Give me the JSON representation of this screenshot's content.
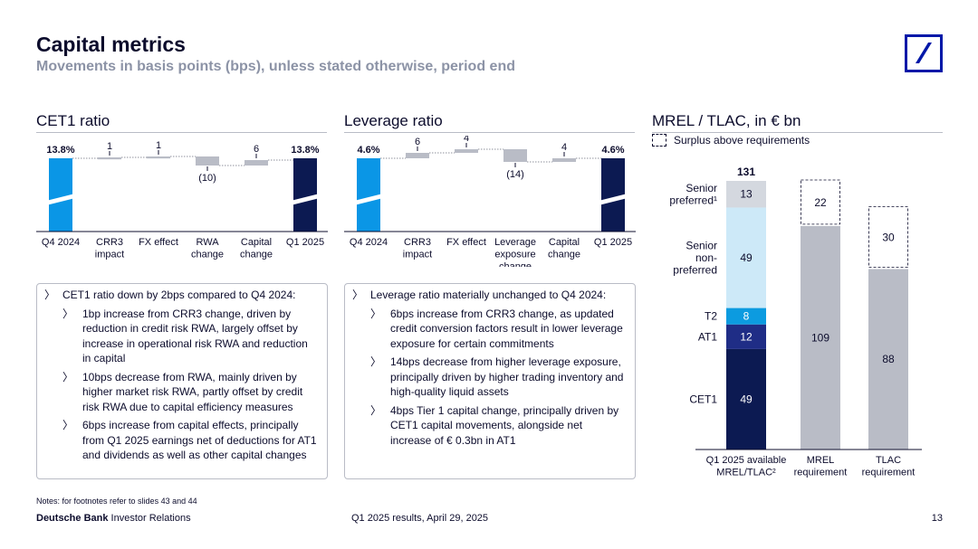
{
  "header": {
    "title": "Capital metrics",
    "subtitle": "Movements in basis points (bps), unless stated otherwise, period end"
  },
  "sections": {
    "cet1_title": "CET1 ratio",
    "leverage_title": "Leverage ratio",
    "mrel_title": "MREL / TLAC, in € bn",
    "legend_label": "Surplus above requirements"
  },
  "colors": {
    "light_blue": "#0a96e6",
    "navy": "#0c1a52",
    "grey": "#b9bcc6",
    "pale_blue": "#cde9f8",
    "mid_blue": "#0c9be0",
    "dark_blue": "#1f2d86",
    "light_grey": "#d4d8df"
  },
  "chart_data": [
    {
      "type": "bar",
      "title": "CET1 ratio",
      "subtype": "waterfall",
      "categories": [
        "Q4 2024",
        "CRR3 impact",
        "FX effect",
        "RWA change",
        "Capital change",
        "Q1 2025"
      ],
      "values": [
        13.8,
        1,
        1,
        -10,
        6,
        13.8
      ],
      "labels": [
        "13.8%",
        "1",
        "1",
        "(10)",
        "6",
        "13.8%"
      ],
      "units": [
        "%",
        "bps",
        "bps",
        "bps",
        "bps",
        "%"
      ]
    },
    {
      "type": "bar",
      "title": "Leverage ratio",
      "subtype": "waterfall",
      "categories": [
        "Q4 2024",
        "CRR3 impact",
        "FX effect",
        "Leverage exposure change",
        "Capital change",
        "Q1 2025"
      ],
      "values": [
        4.6,
        6,
        4,
        -14,
        4,
        4.6
      ],
      "labels": [
        "4.6%",
        "6",
        "4",
        "(14)",
        "4",
        "4.6%"
      ],
      "units": [
        "%",
        "bps",
        "bps",
        "bps",
        "bps",
        "%"
      ]
    },
    {
      "type": "bar",
      "title": "MREL / TLAC, in € bn",
      "subtype": "stacked",
      "categories": [
        "Q1 2025 available MREL/TLAC2",
        "MREL requirement",
        "TLAC requirement"
      ],
      "stack_labels": [
        "CET1",
        "AT1",
        "T2",
        "Senior non-preferred",
        "Senior preferred1"
      ],
      "available": {
        "CET1": 49,
        "AT1": 12,
        "T2": 8,
        "Senior non-preferred": 49,
        "Senior preferred1": 13,
        "total": 131
      },
      "requirements": [
        {
          "name": "MREL requirement",
          "requirement": 109,
          "surplus": 22
        },
        {
          "name": "TLAC requirement",
          "requirement": 88,
          "surplus": 30
        }
      ]
    }
  ],
  "cet1_text": {
    "headline": "CET1 ratio down by 2bps compared to Q4 2024:",
    "bullets": [
      "1bp increase from CRR3 change, driven by reduction in credit risk RWA, largely offset by increase in operational risk RWA and reduction in capital",
      "10bps decrease from RWA, mainly driven by higher market risk RWA, partly offset by credit risk RWA due to capital efficiency measures",
      "6bps increase from capital effects, principally from Q1 2025 earnings net of deductions for AT1 and dividends as well as other capital changes"
    ]
  },
  "leverage_text": {
    "headline": "Leverage ratio materially unchanged to Q4 2024:",
    "bullets": [
      "6bps increase from CRR3 change, as updated credit conversion factors result in lower leverage exposure for certain commitments",
      "14bps decrease from higher leverage exposure, principally driven by higher trading inventory and high-quality liquid assets",
      "4bps Tier 1 capital change, principally driven by CET1 capital movements, alongside net increase of € 0.3bn in AT1"
    ]
  },
  "footer": {
    "notes": "Notes: for footnotes refer to slides 43 and 44",
    "brand_bold": "Deutsche Bank",
    "brand_rest": " Investor Relations",
    "center": "Q1 2025 results, April 29, 2025",
    "page": "13"
  }
}
